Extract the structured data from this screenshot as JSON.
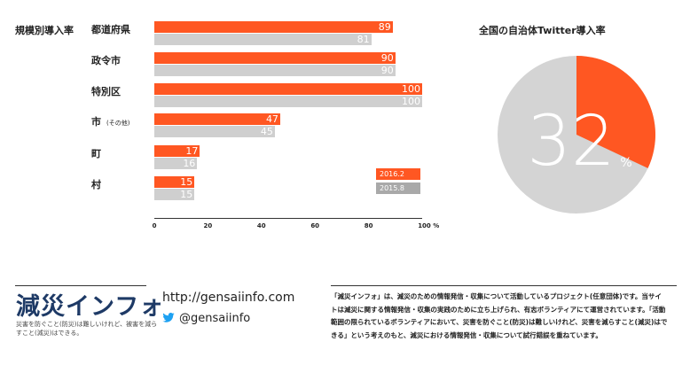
{
  "chart_data": [
    {
      "type": "bar",
      "title": "規模別導入率",
      "categories": [
        "都道府県",
        "政令市",
        "特別区",
        "市",
        "町",
        "村"
      ],
      "category_notes": [
        "",
        "",
        "",
        "(その他)",
        "",
        ""
      ],
      "series": [
        {
          "name": "2016.2",
          "color": "#ff5722",
          "values": [
            89,
            90,
            100,
            47,
            17,
            15
          ]
        },
        {
          "name": "2015.8",
          "color": "#cfcfcf",
          "values": [
            81,
            90,
            100,
            45,
            16,
            15
          ]
        }
      ],
      "x_ticks": [
        "0",
        "20",
        "40",
        "60",
        "80",
        "100 %"
      ],
      "xlim": [
        0,
        100
      ],
      "legend_position": "lower-right"
    },
    {
      "type": "pie",
      "title": "全国の自治体Twitter導入率",
      "value": 32,
      "value_label": "32",
      "unit": "%",
      "colors": {
        "highlight": "#ff5722",
        "rest": "#d4d4d4"
      }
    }
  ],
  "footer": {
    "logo": "減災インフォ",
    "tagline": "災害を防ぐこと(防災)は難しいけれど、被害を減らすこと(減災)はできる。",
    "url": "http://gensaiinfo.com",
    "twitter": "@gensaiinfo",
    "description": "「減災インフォ」は、減災のための情報発信・収集について活動しているプロジェクト(任意団体)です。当サイトは減災に関する情報発信・収集の実践のために立ち上げられ、有志ボランティアにて運営されています。「活動範囲の限られているボランティアにおいて、災害を防ぐこと(防災)は難しいけれど、災害を減らすこと(減災)はできる」という考えのもと、減災における情報発信・収集について試行錯誤を重ねています。"
  }
}
